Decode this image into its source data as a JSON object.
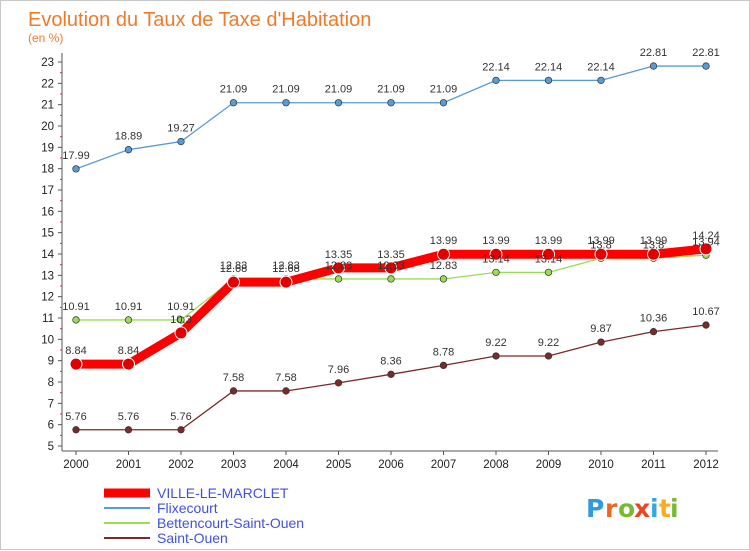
{
  "chart_data": {
    "type": "line",
    "title": "Evolution du Taux de Taxe d'Habitation",
    "subtitle": "(en %)",
    "xlabel": "",
    "ylabel": "",
    "x": [
      "2000",
      "2001",
      "2002",
      "2003",
      "2004",
      "2005",
      "2006",
      "2007",
      "2008",
      "2009",
      "2010",
      "2011",
      "2012"
    ],
    "ylim": [
      5,
      23
    ],
    "yticks": [
      5,
      6,
      7,
      8,
      9,
      10,
      11,
      12,
      13,
      14,
      15,
      16,
      17,
      18,
      19,
      20,
      21,
      22,
      23
    ],
    "grid": false,
    "legend_position": "bottom-left",
    "series": [
      {
        "name": "VILLE-LE-MARCLET",
        "color": "#ff0000",
        "values": [
          8.84,
          8.84,
          10.3,
          12.68,
          12.68,
          13.35,
          13.35,
          13.99,
          13.99,
          13.99,
          13.99,
          13.99,
          14.24
        ],
        "labels": [
          "8.84",
          "8.84",
          "10.3",
          "12.68",
          "12.68",
          "13.35",
          "13.35",
          "13.99",
          "13.99",
          "13.99",
          "13.99",
          "13.99",
          "14.24"
        ]
      },
      {
        "name": "Flixecourt",
        "color": "#5b9bd5",
        "values": [
          17.99,
          18.89,
          19.27,
          21.09,
          21.09,
          21.09,
          21.09,
          21.09,
          22.14,
          22.14,
          22.14,
          22.81,
          22.81
        ],
        "labels": [
          "17.99",
          "18.89",
          "19.27",
          "21.09",
          "21.09",
          "21.09",
          "21.09",
          "21.09",
          "22.14",
          "22.14",
          "22.14",
          "22.81",
          "22.81"
        ]
      },
      {
        "name": "Bettencourt-Saint-Ouen",
        "color": "#99dd55",
        "values": [
          10.91,
          10.91,
          10.91,
          12.83,
          12.83,
          12.83,
          12.83,
          12.83,
          13.14,
          13.14,
          13.8,
          13.8,
          13.94
        ],
        "labels": [
          "10.91",
          "10.91",
          "10.91",
          "12.83",
          "12.83",
          "12.83",
          "12.83",
          "12.83",
          "13.14",
          "13.14",
          "13.8",
          "13.8",
          "13.94"
        ]
      },
      {
        "name": "Saint-Ouen",
        "color": "#7a2a2a",
        "values": [
          5.76,
          5.76,
          5.76,
          7.58,
          7.58,
          7.96,
          8.36,
          8.78,
          9.22,
          9.22,
          9.87,
          10.36,
          10.67
        ],
        "labels": [
          "5.76",
          "5.76",
          "5.76",
          "7.58",
          "7.58",
          "7.96",
          "8.36",
          "8.78",
          "9.22",
          "9.22",
          "9.87",
          "10.36",
          "10.67"
        ]
      }
    ]
  },
  "logo": {
    "letters": [
      "P",
      "r",
      "o",
      "x",
      "i",
      "t",
      "i"
    ],
    "colors": [
      "#3399dd",
      "#ee6622",
      "#77bb33",
      "#ee4422",
      "#33aadd",
      "#ffaa22",
      "#77bb33"
    ]
  }
}
